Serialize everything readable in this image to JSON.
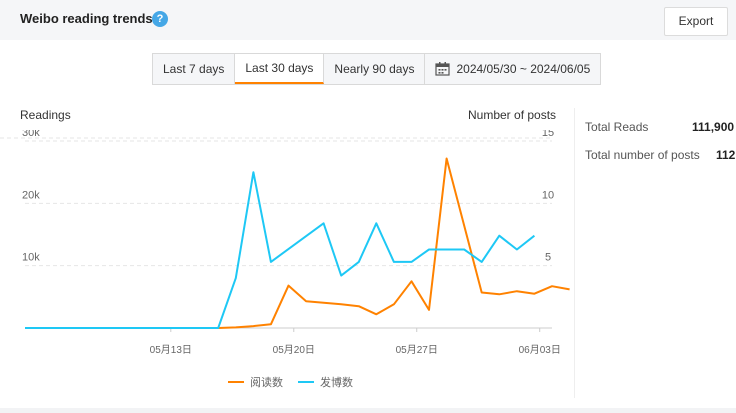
{
  "header": {
    "title": "Weibo reading trends",
    "help_glyph": "?",
    "export_label": "Export"
  },
  "range_tabs": {
    "items": [
      "Last 7 days",
      "Last 30 days",
      "Nearly 90 days"
    ],
    "active": "Last 30 days",
    "date_range": "2024/05/30 ~ 2024/06/05",
    "date_icon": "calendar-icon"
  },
  "summary": {
    "total_reads_label": "Total Reads",
    "total_reads_value": "111,900",
    "total_posts_label": "Total number of posts",
    "total_posts_value": "112"
  },
  "colors": {
    "readings": "#ff8200",
    "posts": "#1ec8f5",
    "accent": "#ff8200"
  },
  "chart_data": {
    "type": "line",
    "left_axis_label": "Readings",
    "right_axis_label": "Number of posts",
    "left_ticks": [
      "10k",
      "20k",
      "30k"
    ],
    "right_ticks": [
      "5",
      "10",
      "15"
    ],
    "left_ylim": [
      0,
      30000
    ],
    "right_ylim": [
      0,
      15
    ],
    "x_tick_labels": [
      "05月13日",
      "05月20日",
      "05月27日",
      "06月03日"
    ],
    "x_tick_days": [
      7,
      14,
      21,
      28
    ],
    "x_days": [
      0,
      30
    ],
    "grid": "horizontal dashed",
    "legend_position": "bottom",
    "series": [
      {
        "name": "阅读数",
        "axis": "left",
        "points": [
          [
            0,
            0
          ],
          [
            11,
            0
          ],
          [
            12,
            100
          ],
          [
            13,
            300
          ],
          [
            14,
            600
          ],
          [
            15,
            6800
          ],
          [
            16,
            4300
          ],
          [
            18,
            3800
          ],
          [
            19,
            3500
          ],
          [
            20,
            2200
          ],
          [
            21,
            3800
          ],
          [
            22,
            7500
          ],
          [
            23,
            2900
          ],
          [
            24,
            27200
          ],
          [
            26,
            5700
          ],
          [
            27,
            5400
          ],
          [
            28,
            5900
          ],
          [
            29,
            5500
          ],
          [
            30,
            6700
          ],
          [
            31,
            6200
          ]
        ]
      },
      {
        "name": "发博数",
        "axis": "right",
        "points": [
          [
            0,
            0
          ],
          [
            11,
            0
          ],
          [
            12,
            4
          ],
          [
            13,
            12.5
          ],
          [
            14,
            5.3
          ],
          [
            17,
            8.4
          ],
          [
            18,
            4.2
          ],
          [
            19,
            5.3
          ],
          [
            20,
            8.4
          ],
          [
            21,
            5.3
          ],
          [
            22,
            5.3
          ],
          [
            23,
            6.3
          ],
          [
            24,
            6.3
          ],
          [
            25,
            6.3
          ],
          [
            26,
            5.3
          ],
          [
            27,
            7.4
          ],
          [
            28,
            6.3
          ],
          [
            29,
            7.4
          ]
        ]
      }
    ]
  }
}
